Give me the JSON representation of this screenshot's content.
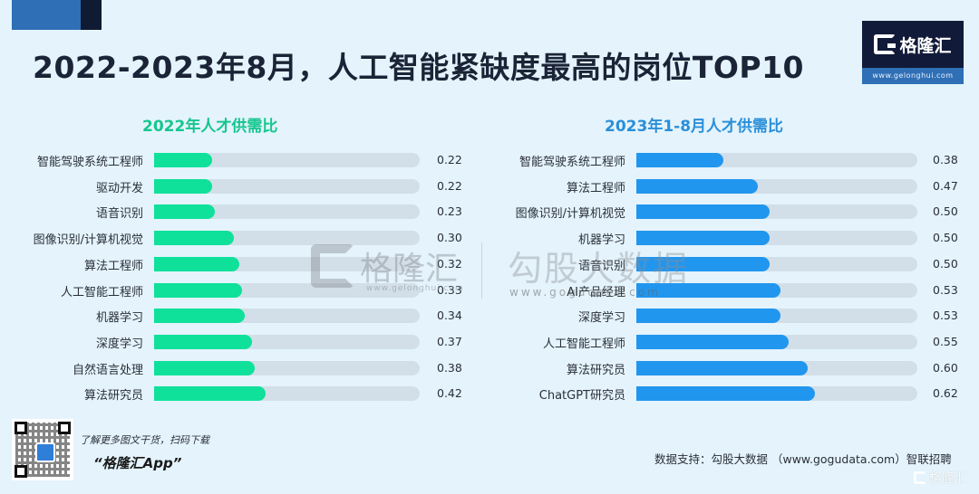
{
  "header": {
    "title": "2022-2023年8月，人工智能紧缺度最高的岗位TOP10"
  },
  "brand": {
    "logo_text": "格隆汇",
    "logo_url": "www.gelonghui.com",
    "watermark_left_text": "格隆汇",
    "watermark_left_url": "www.gelonghui.com",
    "watermark_right_text": "勾股大数据",
    "watermark_right_url": "www.gogudata.com",
    "bottom_logo_text": "格隆汇"
  },
  "footer": {
    "promo_line1": "了解更多图文干货，扫码下载",
    "promo_line2": "“格隆汇App”",
    "source": "数据支持：勾股大数据 （www.gogudata.com）智联招聘"
  },
  "colors": {
    "background": "#e4f3fc",
    "left_bar": "#0fe19a",
    "right_bar": "#2196ee",
    "track": "#d3dfe8",
    "left_title": "#16c68e",
    "right_title": "#2a8fd8"
  },
  "chart_data": [
    {
      "type": "bar",
      "orientation": "horizontal",
      "title": "2022年人才供需比",
      "xlabel": "",
      "ylabel": "",
      "grid": false,
      "legend": "none",
      "scale_min": 0,
      "scale_max": 1.0,
      "categories": [
        "智能驾驶系统工程师",
        "驱动开发",
        "语音识别",
        "图像识别/计算机视觉",
        "算法工程师",
        "人工智能工程师",
        "机器学习",
        "深度学习",
        "自然语言处理",
        "算法研究员"
      ],
      "values": [
        0.22,
        0.22,
        0.23,
        0.3,
        0.32,
        0.33,
        0.34,
        0.37,
        0.38,
        0.42
      ],
      "value_labels": [
        "0.22",
        "0.22",
        "0.23",
        "0.30",
        "0.32",
        "0.33",
        "0.34",
        "0.37",
        "0.38",
        "0.42"
      ]
    },
    {
      "type": "bar",
      "orientation": "horizontal",
      "title": "2023年1-8月人才供需比",
      "xlabel": "",
      "ylabel": "",
      "grid": false,
      "legend": "none",
      "scale_min": 0.155,
      "scale_max": 0.885,
      "categories": [
        "智能驾驶系统工程师",
        "算法工程师",
        "图像识别/计算机视觉",
        "机器学习",
        "语音识别",
        "AI产品经理",
        "深度学习",
        "人工智能工程师",
        "算法研究员",
        "ChatGPT研究员"
      ],
      "values": [
        0.38,
        0.47,
        0.5,
        0.5,
        0.5,
        0.53,
        0.53,
        0.55,
        0.6,
        0.62
      ],
      "value_labels": [
        "0.38",
        "0.47",
        "0.50",
        "0.50",
        "0.50",
        "0.53",
        "0.53",
        "0.55",
        "0.60",
        "0.62"
      ]
    }
  ]
}
